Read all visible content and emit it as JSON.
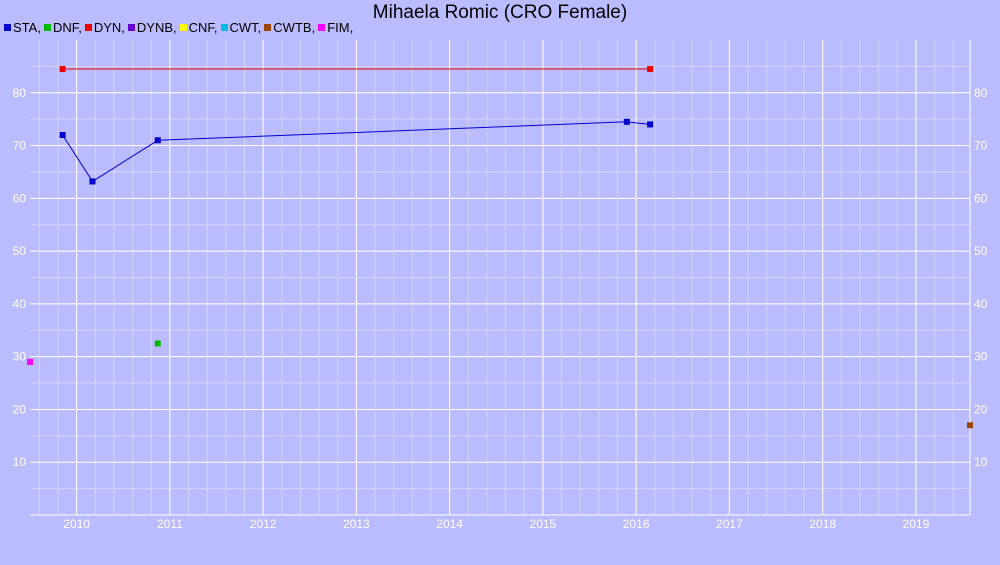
{
  "chart_data": {
    "type": "line",
    "title": "Mihaela Romic (CRO Female)",
    "xlim": [
      2009.5,
      2019.58
    ],
    "ylim": [
      0,
      90
    ],
    "grid": true,
    "legend_position": "top-left",
    "x_ticks": [
      "2010",
      "2011",
      "2012",
      "2013",
      "2014",
      "2015",
      "2016",
      "2017",
      "2018",
      "2019"
    ],
    "y_ticks": [
      "10",
      "20",
      "30",
      "40",
      "50",
      "60",
      "70",
      "80"
    ],
    "legend": [
      {
        "label": "STA,",
        "color": "#0000cc"
      },
      {
        "label": "DNF,",
        "color": "#00bb00"
      },
      {
        "label": "DYN,",
        "color": "#ee0000"
      },
      {
        "label": "DYNB,",
        "color": "#6600cc"
      },
      {
        "label": "CNF,",
        "color": "#ffff00"
      },
      {
        "label": "CWT,",
        "color": "#00bbdd"
      },
      {
        "label": "CWTB,",
        "color": "#994400"
      },
      {
        "label": "FIM,",
        "color": "#ff00ff"
      }
    ],
    "series": [
      {
        "name": "STA",
        "color": "#0000cc",
        "line": true,
        "points": [
          [
            2009.85,
            72
          ],
          [
            2010.17,
            63.2
          ],
          [
            2010.87,
            71
          ],
          [
            2015.9,
            74.5
          ],
          [
            2016.15,
            74
          ]
        ]
      },
      {
        "name": "DNF",
        "color": "#00bb00",
        "line": false,
        "points": [
          [
            2010.87,
            32.5
          ]
        ]
      },
      {
        "name": "DYN",
        "color": "#ee0000",
        "line": true,
        "points": [
          [
            2009.85,
            84.5
          ],
          [
            2016.15,
            84.5
          ]
        ]
      },
      {
        "name": "CWTB",
        "color": "#994400",
        "line": false,
        "points": [
          [
            2019.58,
            17
          ]
        ]
      },
      {
        "name": "FIM",
        "color": "#ff00ff",
        "line": false,
        "points": [
          [
            2009.5,
            29
          ]
        ]
      }
    ]
  }
}
